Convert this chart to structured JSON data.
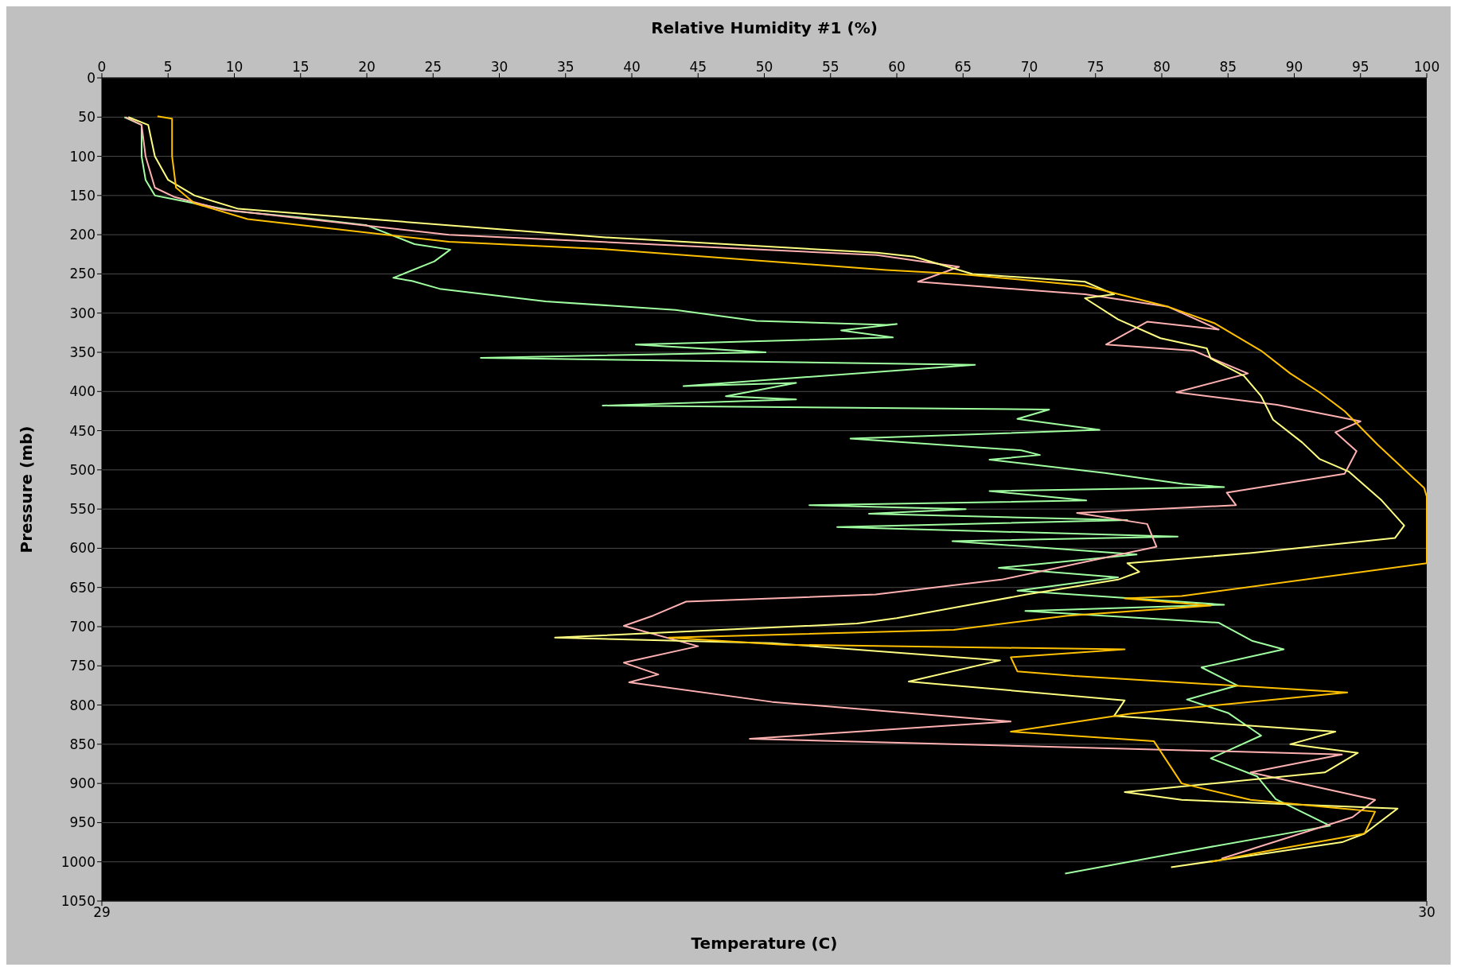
{
  "chart_data": {
    "type": "line",
    "xlabel": "Temperature (C)",
    "ylabel": "Pressure (mb)",
    "x2label": "Relative Humidity #1 (%)",
    "xlim": [
      29,
      30
    ],
    "xticks": [
      29,
      30
    ],
    "x2lim": [
      0,
      100
    ],
    "x2ticks": [
      0,
      5,
      10,
      15,
      20,
      25,
      30,
      35,
      40,
      45,
      50,
      55,
      60,
      65,
      70,
      75,
      80,
      85,
      90,
      95,
      100
    ],
    "ylim": [
      1050,
      0
    ],
    "yticks": [
      0,
      50,
      100,
      150,
      200,
      250,
      300,
      350,
      400,
      450,
      500,
      550,
      600,
      650,
      700,
      750,
      800,
      850,
      900,
      950,
      1000,
      1050
    ],
    "grid": "y",
    "line_style": "solid",
    "series": [
      {
        "color": "#a0ffa0",
        "axis": "x2",
        "x": [
          1.7,
          3,
          3,
          3.3,
          4,
          5.5,
          10,
          15,
          20,
          23.6,
          26.3,
          25.1,
          22,
          23.4,
          25.5,
          33.5,
          43.3,
          49.4,
          59.2,
          60,
          55.8,
          59.7,
          40.3,
          50.1,
          28.6,
          65.9,
          43.9,
          52.4,
          47.1,
          52.4,
          37.8,
          71.5,
          69.1,
          75.3,
          56.5,
          69.4,
          70.8,
          67,
          75.7,
          81.6,
          84.7,
          67,
          74.3,
          53.4,
          65.2,
          57.9,
          77.4,
          55.5,
          81.2,
          64.2,
          78.1,
          67.7,
          76.7,
          69.1,
          84.7,
          69.7,
          84.3,
          86.8,
          89.2,
          83,
          85.7,
          81.9,
          85,
          87.5,
          83.7,
          87.2,
          88.6,
          92.7,
          83,
          72.7
        ],
        "values": [
          50,
          60,
          100,
          130,
          150,
          155,
          170,
          178,
          188,
          212,
          219,
          234,
          255,
          259,
          269,
          285,
          296,
          310,
          315,
          314,
          322,
          331,
          340,
          350,
          357,
          366,
          393,
          389,
          406,
          410,
          418,
          423,
          435,
          449,
          460,
          475,
          481,
          487,
          504,
          518,
          522,
          527,
          539,
          545,
          550,
          556,
          564,
          573,
          585,
          591,
          608,
          625,
          637,
          654,
          672,
          680,
          695,
          718,
          729,
          752,
          775,
          793,
          810,
          839,
          868,
          891,
          920,
          954,
          983,
          1015
        ]
      },
      {
        "color": "#ffb0b0",
        "axis": "x2",
        "x": [
          1.8,
          3,
          3.3,
          4,
          5.5,
          9.1,
          26.2,
          37.6,
          58.5,
          64.7,
          61.6,
          74.2,
          80.5,
          84.3,
          78.9,
          75.8,
          82.4,
          86.5,
          81.1,
          88.7,
          95,
          93.1,
          94.7,
          93.8,
          84.9,
          85.6,
          73.6,
          78.9,
          79.6,
          67.9,
          58.4,
          44.1,
          41.6,
          39.4,
          45,
          39.4,
          42,
          39.8,
          50.6,
          68.6,
          48.9,
          93.6,
          86.7,
          96.1,
          94.4,
          84.5
        ],
        "values": [
          50,
          60,
          100,
          140,
          152,
          168,
          200,
          209,
          226,
          241,
          260,
          276,
          292,
          321,
          311,
          340,
          348,
          377,
          401,
          417,
          438,
          452,
          476,
          505,
          529,
          545,
          555,
          569,
          598,
          640,
          659,
          668,
          686,
          699,
          725,
          746,
          761,
          771,
          796,
          821,
          843,
          863,
          886,
          921,
          943,
          996
        ]
      },
      {
        "color": "#ffff80",
        "axis": "x2",
        "x": [
          2,
          3.5,
          4,
          5,
          7,
          10.3,
          37.6,
          58.5,
          61.3,
          65.7,
          74.2,
          76.4,
          74.2,
          76.7,
          79.9,
          83.4,
          83.7,
          86.2,
          87.5,
          88.4,
          90.6,
          91.9,
          94.1,
          96.6,
          98.3,
          97.6,
          86.8,
          77.4,
          78.3,
          76.7,
          69.8,
          60,
          57,
          34.2,
          50.6,
          67.8,
          60.9,
          64.3,
          77.2,
          76.4,
          93.1,
          89.7,
          94.8,
          92.3,
          77.2,
          81.5,
          97.8,
          95.3,
          93.6,
          80.7
        ],
        "values": [
          50,
          60,
          100,
          130,
          150,
          167,
          203,
          223,
          228,
          250,
          260,
          276,
          281,
          308,
          332,
          345,
          358,
          380,
          406,
          436,
          465,
          486,
          502,
          539,
          571,
          587,
          606,
          619,
          630,
          640,
          659,
          689,
          696,
          714,
          721,
          743,
          770,
          775,
          794,
          814,
          834,
          850,
          861,
          886,
          911,
          921,
          932,
          964,
          975,
          1007
        ]
      },
      {
        "color": "#ffc000",
        "axis": "x2",
        "x": [
          4.2,
          5.3,
          5.3,
          5.6,
          7,
          11,
          26.2,
          37.6,
          59.2,
          64.7,
          74.2,
          80.5,
          84,
          87.5,
          89.7,
          91.9,
          93.8,
          96.3,
          99.8,
          100,
          100,
          81.5,
          77.2,
          83.7,
          72.9,
          64.3,
          42.8,
          51.4,
          77.2,
          68.6,
          69.1,
          73.4,
          94,
          77.6,
          68.6,
          79.4,
          81.5,
          86.7,
          96.1,
          95.3,
          88,
          83.7
        ],
        "values": [
          49,
          52,
          100,
          140,
          160,
          180,
          209,
          218,
          245,
          250,
          265,
          292,
          313,
          348,
          377,
          401,
          425,
          468,
          523,
          534,
          619,
          661,
          664,
          673,
          686,
          704,
          714,
          723,
          729,
          739,
          757,
          763,
          784,
          811,
          834,
          846,
          900,
          921,
          936,
          964,
          986,
          1000
        ]
      }
    ]
  }
}
